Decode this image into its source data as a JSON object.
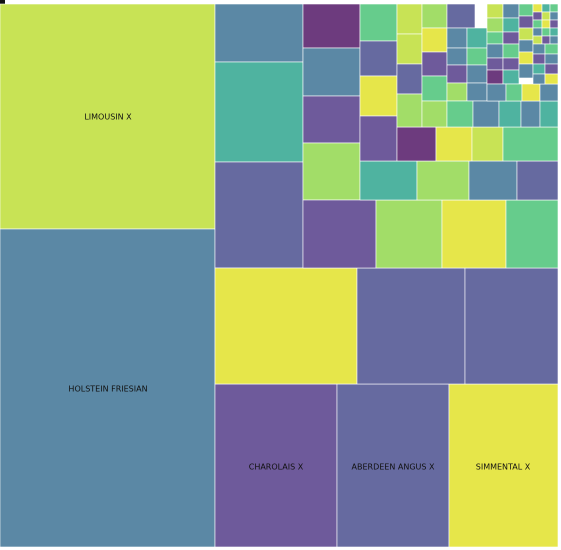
{
  "chart_data": {
    "type": "treemap",
    "title": "",
    "labeled_tiles": [
      {
        "label": "HOLSTEIN FRIESIAN",
        "color": "#5b88a5"
      },
      {
        "label": "LIMOUSIN X",
        "color": "#c8e355"
      },
      {
        "label": "CHAROLAIS X",
        "color": "#6e5a9b"
      },
      {
        "label": "ABERDEEN ANGUS X",
        "color": "#666aa0"
      },
      {
        "label": "SIMMENTAL X",
        "color": "#e6e64a"
      }
    ],
    "colors": {
      "yellow": "#e6e64a",
      "lime": "#c8e355",
      "light_green": "#a2dd68",
      "green": "#66cc8c",
      "teal": "#4fb3a0",
      "steel": "#5b88a5",
      "slate": "#666aa0",
      "purple": "#6e5a9b",
      "deep_purple": "#6d3b7e"
    }
  }
}
